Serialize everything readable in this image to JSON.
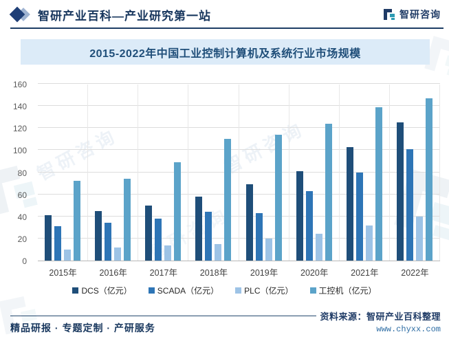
{
  "header": {
    "title": "智研产业百科—产业研究第一站",
    "brand": "智研咨询"
  },
  "watermark": {
    "text": "智研咨询"
  },
  "chart_data": {
    "type": "bar",
    "title": "2015-2022年中国工业控制计算机及系统行业市场规模",
    "categories": [
      "2015年",
      "2016年",
      "2017年",
      "2018年",
      "2019年",
      "2020年",
      "2021年",
      "2022年"
    ],
    "series": [
      {
        "name": "DCS（亿元）",
        "color": "#1f4e79",
        "values": [
          41,
          45,
          50,
          58,
          69,
          81,
          103,
          125
        ]
      },
      {
        "name": "SCADA（亿元）",
        "color": "#2e75b6",
        "values": [
          31,
          34,
          38,
          44,
          43,
          63,
          80,
          101
        ]
      },
      {
        "name": "PLC（亿元）",
        "color": "#9dc3e6",
        "values": [
          10,
          12,
          14,
          15,
          20,
          24,
          32,
          40
        ]
      },
      {
        "name": "工控机（亿元）",
        "color": "#5ba3c9",
        "values": [
          72,
          74,
          89,
          110,
          114,
          124,
          139,
          147
        ]
      }
    ],
    "xlabel": "",
    "ylabel": "",
    "ylim": [
      0,
      160
    ],
    "yticks": [
      0,
      20,
      40,
      60,
      80,
      100,
      120,
      140,
      160
    ],
    "grid": true,
    "legend_position": "bottom"
  },
  "footer": {
    "services": "精品研报 · 专题定制 · 产研服务",
    "source": "资料来源：智研产业百科整理",
    "website": "www.chyxx.com"
  }
}
